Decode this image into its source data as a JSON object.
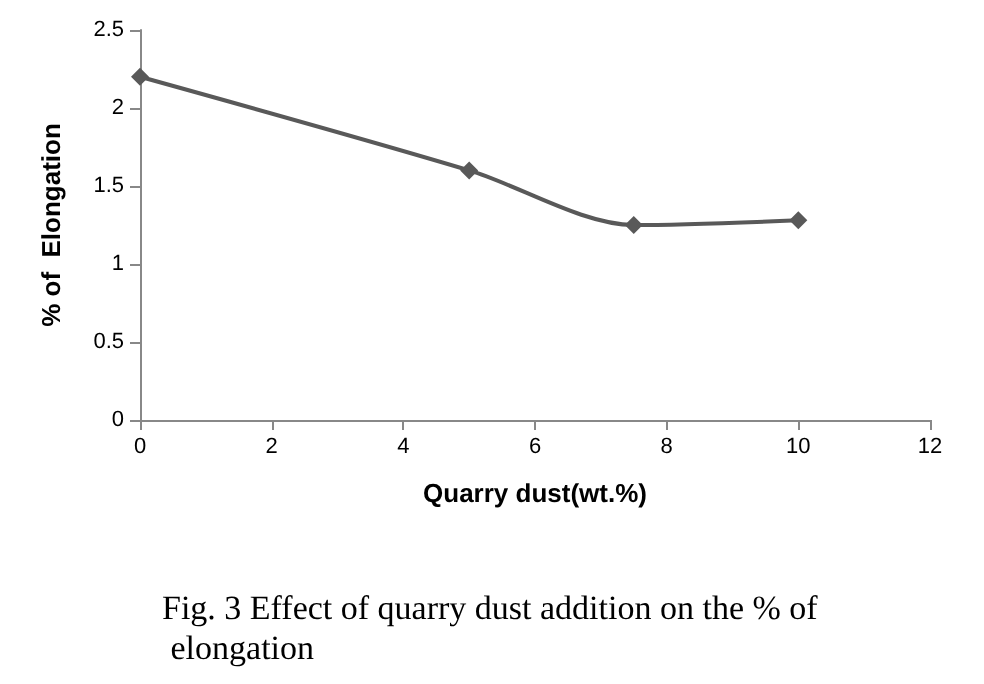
{
  "chart_data": {
    "type": "line",
    "xlabel": "Quarry dust(wt.%)",
    "ylabel": "% of  Elongation",
    "annotations": [
      "Fig. 3 Effect of quarry dust addition on the % of elongation"
    ],
    "x": [
      0,
      5,
      7.5,
      10
    ],
    "series": [
      {
        "color": "#595959",
        "values": [
          2.2,
          1.6,
          1.25,
          1.28
        ]
      }
    ],
    "xlim": [
      0,
      12
    ],
    "xticks": [
      0,
      2,
      4,
      6,
      8,
      10,
      12
    ],
    "ylim": [
      0,
      2.5
    ],
    "yticks": [
      0,
      0.5,
      1,
      1.5,
      2,
      2.5
    ],
    "marker": "diamond",
    "line_style": "solid",
    "grid": false
  }
}
